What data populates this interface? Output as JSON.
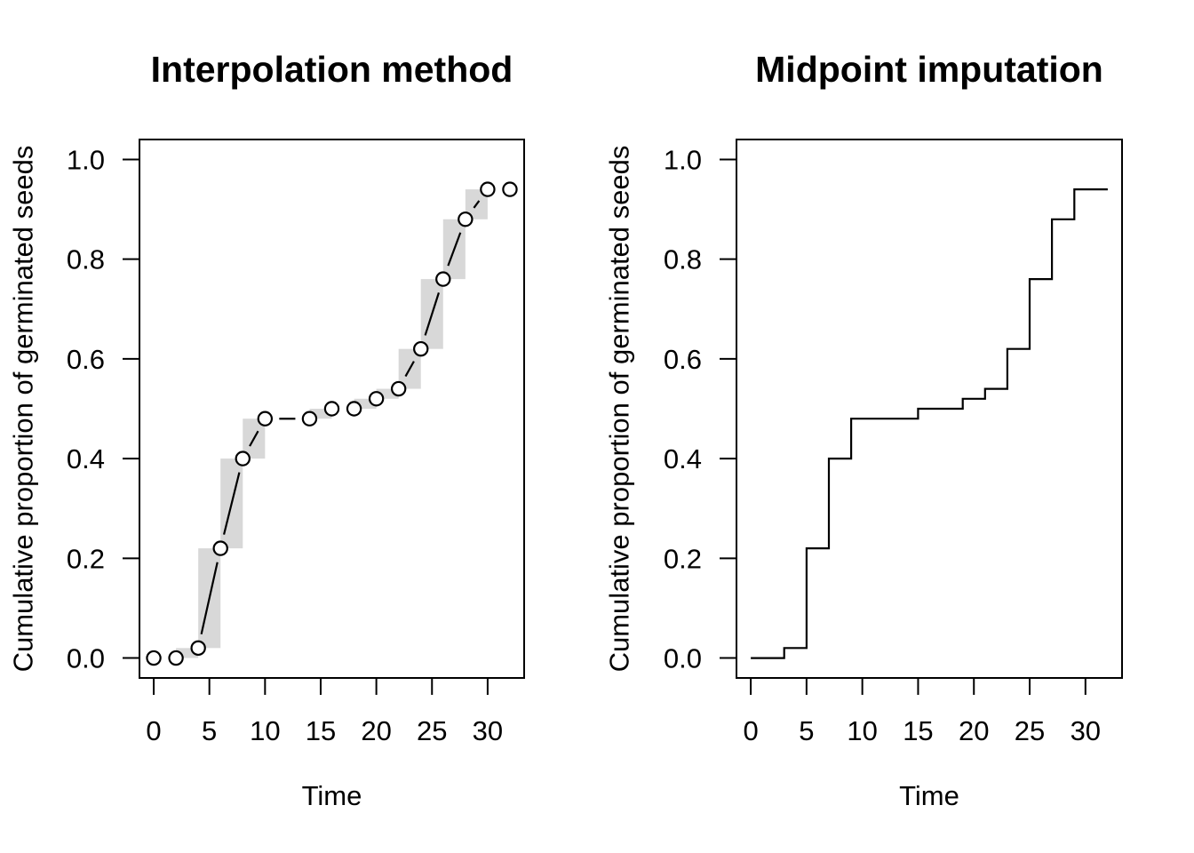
{
  "chart_data": [
    {
      "type": "line",
      "title": "Interpolation method",
      "xlabel": "Time",
      "ylabel": "Cumulative proportion of germinated seeds",
      "x": [
        0,
        2,
        4,
        6,
        8,
        10,
        14,
        16,
        18,
        20,
        22,
        24,
        26,
        28,
        30,
        32
      ],
      "y": [
        0.0,
        0.0,
        0.02,
        0.22,
        0.4,
        0.48,
        0.48,
        0.5,
        0.5,
        0.52,
        0.54,
        0.62,
        0.76,
        0.88,
        0.94,
        0.94
      ],
      "marker": "open-circle",
      "line_style": "type-b-solid-with-point-gaps",
      "line_color": "#000000",
      "band_color": "#d8d8d8",
      "interval_boxes": [
        {
          "x1": 2,
          "x2": 4,
          "y1": 0.0,
          "y2": 0.02
        },
        {
          "x1": 4,
          "x2": 6,
          "y1": 0.02,
          "y2": 0.22
        },
        {
          "x1": 6,
          "x2": 8,
          "y1": 0.22,
          "y2": 0.4
        },
        {
          "x1": 8,
          "x2": 10,
          "y1": 0.4,
          "y2": 0.48
        },
        {
          "x1": 14,
          "x2": 16,
          "y1": 0.48,
          "y2": 0.5
        },
        {
          "x1": 18,
          "x2": 20,
          "y1": 0.5,
          "y2": 0.52
        },
        {
          "x1": 20,
          "x2": 22,
          "y1": 0.52,
          "y2": 0.54
        },
        {
          "x1": 22,
          "x2": 24,
          "y1": 0.54,
          "y2": 0.62
        },
        {
          "x1": 24,
          "x2": 26,
          "y1": 0.62,
          "y2": 0.76
        },
        {
          "x1": 26,
          "x2": 28,
          "y1": 0.76,
          "y2": 0.88
        },
        {
          "x1": 28,
          "x2": 30,
          "y1": 0.88,
          "y2": 0.94
        }
      ],
      "xticks": [
        0,
        5,
        10,
        15,
        20,
        25,
        30
      ],
      "yticks": [
        0.0,
        0.2,
        0.4,
        0.6,
        0.8,
        1.0
      ],
      "ytick_labels": [
        "0.0",
        "0.2",
        "0.4",
        "0.6",
        "0.8",
        "1.0"
      ],
      "xlim": [
        -1.28,
        33.28
      ],
      "ylim": [
        -0.04,
        1.04
      ],
      "grid": "off",
      "legend": "none"
    },
    {
      "type": "step",
      "title": "Midpoint imputation",
      "xlabel": "Time",
      "ylabel": "Cumulative proportion of germinated seeds",
      "step_x": [
        0,
        3,
        5,
        7,
        9,
        15,
        19,
        21,
        23,
        25,
        27,
        29
      ],
      "step_y": [
        0.0,
        0.02,
        0.22,
        0.4,
        0.48,
        0.5,
        0.52,
        0.54,
        0.62,
        0.76,
        0.88,
        0.94
      ],
      "x_end": 32,
      "line_color": "#000000",
      "xticks": [
        0,
        5,
        10,
        15,
        20,
        25,
        30
      ],
      "yticks": [
        0.0,
        0.2,
        0.4,
        0.6,
        0.8,
        1.0
      ],
      "ytick_labels": [
        "0.0",
        "0.2",
        "0.4",
        "0.6",
        "0.8",
        "1.0"
      ],
      "xlim": [
        -1.28,
        33.28
      ],
      "ylim": [
        -0.04,
        1.04
      ],
      "grid": "off",
      "legend": "none"
    }
  ]
}
